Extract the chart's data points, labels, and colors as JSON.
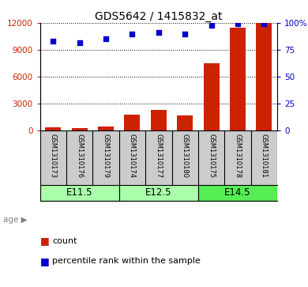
{
  "title": "GDS5642 / 1415832_at",
  "samples": [
    "GSM1310173",
    "GSM1310176",
    "GSM1310179",
    "GSM1310174",
    "GSM1310177",
    "GSM1310180",
    "GSM1310175",
    "GSM1310178",
    "GSM1310181"
  ],
  "counts": [
    400,
    300,
    500,
    1800,
    2300,
    1700,
    7500,
    11500,
    12000
  ],
  "percentiles": [
    83,
    82,
    85,
    90,
    91,
    90,
    98,
    99,
    99
  ],
  "ylim_left": [
    0,
    12000
  ],
  "ylim_right": [
    0,
    100
  ],
  "yticks_left": [
    0,
    3000,
    6000,
    9000,
    12000
  ],
  "yticks_right": [
    0,
    25,
    50,
    75,
    100
  ],
  "bar_color": "#cc2200",
  "dot_color": "#0000cc",
  "groups": [
    {
      "label": "E11.5",
      "start": 0,
      "end": 3,
      "color": "#aaffaa"
    },
    {
      "label": "E12.5",
      "start": 3,
      "end": 6,
      "color": "#aaffaa"
    },
    {
      "label": "E14.5",
      "start": 6,
      "end": 9,
      "color": "#55ee55"
    }
  ],
  "age_label": "age",
  "legend_count_label": "count",
  "legend_pct_label": "percentile rank within the sample",
  "grid_color": "#000000",
  "left_tick_color": "#cc2200",
  "right_tick_color": "#0000cc",
  "background_color": "#ffffff",
  "label_area_color": "#cccccc",
  "group_border_color": "#000000"
}
